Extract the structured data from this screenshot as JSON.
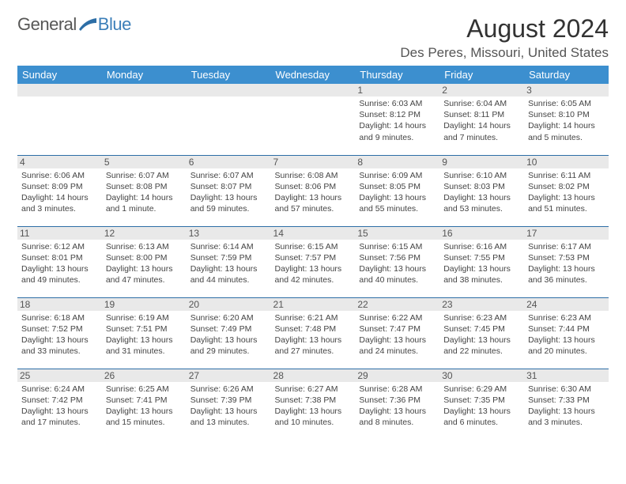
{
  "logo": {
    "word1": "General",
    "word2": "Blue"
  },
  "title": "August 2024",
  "location": "Des Peres, Missouri, United States",
  "colors": {
    "header_bg": "#3c8fcf",
    "header_text": "#ffffff",
    "row_divider": "#2d6ea6",
    "daynum_bg": "#e9e9e9",
    "text": "#444444",
    "logo_gray": "#575756",
    "logo_blue": "#3c7fb9"
  },
  "daysOfWeek": [
    "Sunday",
    "Monday",
    "Tuesday",
    "Wednesday",
    "Thursday",
    "Friday",
    "Saturday"
  ],
  "weeks": [
    [
      null,
      null,
      null,
      null,
      {
        "n": "1",
        "sr": "6:03 AM",
        "ss": "8:12 PM",
        "dl": "14 hours and 9 minutes."
      },
      {
        "n": "2",
        "sr": "6:04 AM",
        "ss": "8:11 PM",
        "dl": "14 hours and 7 minutes."
      },
      {
        "n": "3",
        "sr": "6:05 AM",
        "ss": "8:10 PM",
        "dl": "14 hours and 5 minutes."
      }
    ],
    [
      {
        "n": "4",
        "sr": "6:06 AM",
        "ss": "8:09 PM",
        "dl": "14 hours and 3 minutes."
      },
      {
        "n": "5",
        "sr": "6:07 AM",
        "ss": "8:08 PM",
        "dl": "14 hours and 1 minute."
      },
      {
        "n": "6",
        "sr": "6:07 AM",
        "ss": "8:07 PM",
        "dl": "13 hours and 59 minutes."
      },
      {
        "n": "7",
        "sr": "6:08 AM",
        "ss": "8:06 PM",
        "dl": "13 hours and 57 minutes."
      },
      {
        "n": "8",
        "sr": "6:09 AM",
        "ss": "8:05 PM",
        "dl": "13 hours and 55 minutes."
      },
      {
        "n": "9",
        "sr": "6:10 AM",
        "ss": "8:03 PM",
        "dl": "13 hours and 53 minutes."
      },
      {
        "n": "10",
        "sr": "6:11 AM",
        "ss": "8:02 PM",
        "dl": "13 hours and 51 minutes."
      }
    ],
    [
      {
        "n": "11",
        "sr": "6:12 AM",
        "ss": "8:01 PM",
        "dl": "13 hours and 49 minutes."
      },
      {
        "n": "12",
        "sr": "6:13 AM",
        "ss": "8:00 PM",
        "dl": "13 hours and 47 minutes."
      },
      {
        "n": "13",
        "sr": "6:14 AM",
        "ss": "7:59 PM",
        "dl": "13 hours and 44 minutes."
      },
      {
        "n": "14",
        "sr": "6:15 AM",
        "ss": "7:57 PM",
        "dl": "13 hours and 42 minutes."
      },
      {
        "n": "15",
        "sr": "6:15 AM",
        "ss": "7:56 PM",
        "dl": "13 hours and 40 minutes."
      },
      {
        "n": "16",
        "sr": "6:16 AM",
        "ss": "7:55 PM",
        "dl": "13 hours and 38 minutes."
      },
      {
        "n": "17",
        "sr": "6:17 AM",
        "ss": "7:53 PM",
        "dl": "13 hours and 36 minutes."
      }
    ],
    [
      {
        "n": "18",
        "sr": "6:18 AM",
        "ss": "7:52 PM",
        "dl": "13 hours and 33 minutes."
      },
      {
        "n": "19",
        "sr": "6:19 AM",
        "ss": "7:51 PM",
        "dl": "13 hours and 31 minutes."
      },
      {
        "n": "20",
        "sr": "6:20 AM",
        "ss": "7:49 PM",
        "dl": "13 hours and 29 minutes."
      },
      {
        "n": "21",
        "sr": "6:21 AM",
        "ss": "7:48 PM",
        "dl": "13 hours and 27 minutes."
      },
      {
        "n": "22",
        "sr": "6:22 AM",
        "ss": "7:47 PM",
        "dl": "13 hours and 24 minutes."
      },
      {
        "n": "23",
        "sr": "6:23 AM",
        "ss": "7:45 PM",
        "dl": "13 hours and 22 minutes."
      },
      {
        "n": "24",
        "sr": "6:23 AM",
        "ss": "7:44 PM",
        "dl": "13 hours and 20 minutes."
      }
    ],
    [
      {
        "n": "25",
        "sr": "6:24 AM",
        "ss": "7:42 PM",
        "dl": "13 hours and 17 minutes."
      },
      {
        "n": "26",
        "sr": "6:25 AM",
        "ss": "7:41 PM",
        "dl": "13 hours and 15 minutes."
      },
      {
        "n": "27",
        "sr": "6:26 AM",
        "ss": "7:39 PM",
        "dl": "13 hours and 13 minutes."
      },
      {
        "n": "28",
        "sr": "6:27 AM",
        "ss": "7:38 PM",
        "dl": "13 hours and 10 minutes."
      },
      {
        "n": "29",
        "sr": "6:28 AM",
        "ss": "7:36 PM",
        "dl": "13 hours and 8 minutes."
      },
      {
        "n": "30",
        "sr": "6:29 AM",
        "ss": "7:35 PM",
        "dl": "13 hours and 6 minutes."
      },
      {
        "n": "31",
        "sr": "6:30 AM",
        "ss": "7:33 PM",
        "dl": "13 hours and 3 minutes."
      }
    ]
  ],
  "labels": {
    "sunrise": "Sunrise:",
    "sunset": "Sunset:",
    "daylight": "Daylight:"
  }
}
